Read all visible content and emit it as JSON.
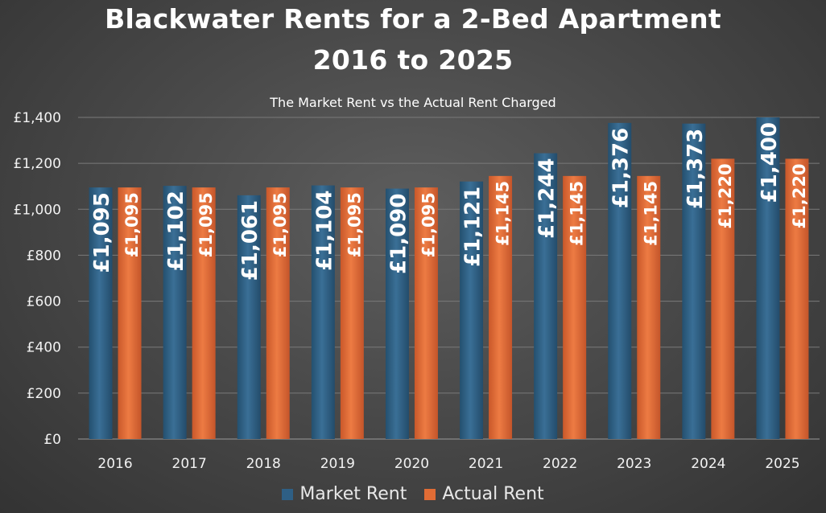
{
  "chart_data": {
    "type": "bar",
    "title_line_1": "Blackwater Rents for a 2-Bed Apartment",
    "title_line_2": "2016 to 2025",
    "subtitle": "The Market Rent vs the Actual Rent Charged",
    "categories": [
      "2016",
      "2017",
      "2018",
      "2019",
      "2020",
      "2021",
      "2022",
      "2023",
      "2024",
      "2025"
    ],
    "series": [
      {
        "name": "Market Rent",
        "color": "#2e5f85",
        "values": [
          1095,
          1102,
          1061,
          1104,
          1090,
          1121,
          1244,
          1376,
          1373,
          1400
        ],
        "labels": [
          "£1,095",
          "£1,102",
          "£1,061",
          "£1,104",
          "£1,090",
          "£1,121",
          "£1,244",
          "£1,376",
          "£1,373",
          "£1,400"
        ]
      },
      {
        "name": "Actual Rent",
        "color": "#e06c35",
        "values": [
          1095,
          1095,
          1095,
          1095,
          1095,
          1145,
          1145,
          1145,
          1220,
          1220
        ],
        "labels": [
          "£1,095",
          "£1,095",
          "£1,095",
          "£1,095",
          "£1,095",
          "£1,145",
          "£1,145",
          "£1,145",
          "£1,220",
          "£1,220"
        ]
      }
    ],
    "y_ticks": [
      "£0",
      "£200",
      "£400",
      "£600",
      "£800",
      "£1,000",
      "£1,200",
      "£1,400"
    ],
    "y_tick_values": [
      0,
      200,
      400,
      600,
      800,
      1000,
      1200,
      1400
    ],
    "ylim": [
      0,
      1400
    ],
    "grid": true,
    "legend_position": "bottom"
  }
}
